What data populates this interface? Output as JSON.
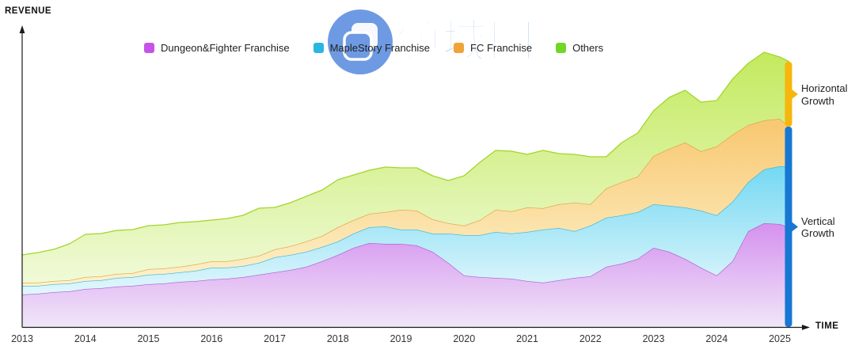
{
  "watermark": {
    "text": "领域圈",
    "logo": "overlapping-documents-icon",
    "color": "#4a90e2"
  },
  "growth_bars": {
    "horizontal": {
      "label": "Horizontal Growth",
      "color": "#f6b60b"
    },
    "vertical": {
      "label": "Vertical Growth",
      "color": "#1777d3"
    }
  },
  "axis_color": "#1a1a1a",
  "chart_data": {
    "type": "area",
    "stacked": true,
    "title": "",
    "xlabel": "TIME",
    "ylabel": "REVENUE",
    "y_axis_unlabeled": true,
    "units": "relative revenue (no numeric y scale shown)",
    "grid": false,
    "legend_position": "top",
    "xlim": [
      2013,
      2025.3
    ],
    "ylim": [
      0,
      380
    ],
    "x_ticks": [
      2013,
      2014,
      2015,
      2016,
      2017,
      2018,
      2019,
      2020,
      2021,
      2022,
      2023,
      2024,
      2025
    ],
    "x": [
      2013,
      2013.25,
      2013.5,
      2013.75,
      2014,
      2014.25,
      2014.5,
      2014.75,
      2015,
      2015.25,
      2015.5,
      2015.75,
      2016,
      2016.25,
      2016.5,
      2016.75,
      2017,
      2017.25,
      2017.5,
      2017.75,
      2018,
      2018.25,
      2018.5,
      2018.75,
      2019,
      2019.25,
      2019.5,
      2019.75,
      2020,
      2020.25,
      2020.5,
      2020.75,
      2021,
      2021.25,
      2021.5,
      2021.75,
      2022,
      2022.25,
      2022.5,
      2022.75,
      2023,
      2023.25,
      2023.5,
      2023.75,
      2024,
      2024.25,
      2024.5,
      2024.75,
      2025,
      2025.15
    ],
    "series": [
      {
        "name": "Dungeon&Fighter Franchise",
        "swatch": "#c653e8",
        "stroke": "#aa5ed0",
        "fill_top": "#d591ef",
        "fill_bottom": "#f0e6f8",
        "values": [
          41,
          42,
          44,
          45,
          48,
          49,
          51,
          52,
          54,
          55,
          57,
          58,
          60,
          61,
          63,
          66,
          69,
          72,
          76,
          83,
          91,
          100,
          106,
          105,
          105,
          103,
          95,
          81,
          65,
          63,
          62,
          61,
          58,
          56,
          59,
          62,
          64,
          76,
          80,
          86,
          100,
          95,
          86,
          75,
          65,
          83,
          121,
          131,
          130,
          126
        ]
      },
      {
        "name": "MapleStory Franchise",
        "swatch": "#29b6e2",
        "stroke": "#3eb3d2",
        "fill_top": "#74d8f2",
        "fill_bottom": "#e2f7fc",
        "values": [
          11,
          10,
          10,
          10,
          10,
          10,
          11,
          11,
          12,
          12,
          12,
          13,
          15,
          14,
          14,
          15,
          19,
          19,
          19,
          18,
          17,
          18,
          20,
          22,
          18,
          20,
          23,
          37,
          51,
          53,
          58,
          57,
          62,
          67,
          66,
          59,
          64,
          62,
          61,
          59,
          55,
          58,
          65,
          72,
          76,
          75,
          62,
          68,
          73,
          77
        ]
      },
      {
        "name": "FC Franchise",
        "swatch": "#f0a437",
        "stroke": "#dfa23f",
        "fill_top": "#f8c770",
        "fill_bottom": "#fdf2cc",
        "values": [
          4,
          4,
          4,
          4,
          5,
          5,
          5,
          5,
          7,
          7,
          7,
          8,
          8,
          8,
          9,
          9,
          10,
          11,
          13,
          14,
          18,
          17,
          17,
          18,
          25,
          24,
          18,
          13,
          12,
          19,
          28,
          28,
          31,
          27,
          30,
          36,
          27,
          37,
          42,
          45,
          61,
          72,
          82,
          75,
          87,
          85,
          72,
          62,
          60,
          50
        ]
      },
      {
        "name": "Others",
        "swatch": "#72d629",
        "stroke": "#a2d629",
        "fill_top": "#c3ea5e",
        "fill_bottom": "#f0fad8",
        "values": [
          35,
          38,
          40,
          46,
          54,
          54,
          55,
          55,
          55,
          55,
          56,
          54,
          52,
          54,
          55,
          60,
          53,
          55,
          57,
          58,
          60,
          57,
          55,
          57,
          53,
          54,
          55,
          54,
          63,
          73,
          75,
          76,
          67,
          73,
          64,
          61,
          60,
          40,
          50,
          55,
          57,
          65,
          66,
          62,
          58,
          70,
          78,
          86,
          78,
          82
        ]
      }
    ]
  }
}
